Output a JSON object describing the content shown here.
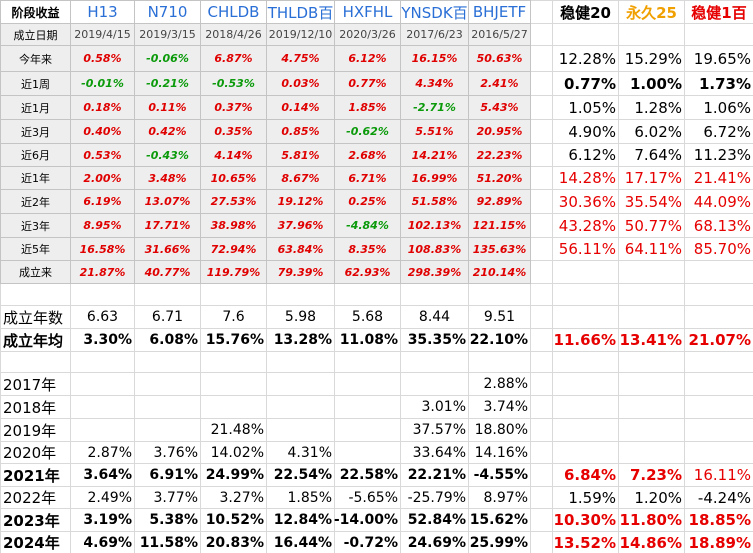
{
  "header": {
    "label": "阶段收益",
    "funds": [
      "H13",
      "N710",
      "CHLDB",
      "THLDB百",
      "HXFHL",
      "YNSDK百",
      "BHJETF"
    ],
    "portfolios": [
      "稳健20",
      "永久25",
      "稳健1百"
    ]
  },
  "inception_dates": {
    "label": "成立日期",
    "values": [
      "2019/4/15",
      "2019/3/15",
      "2018/4/26",
      "2019/12/10",
      "2020/3/26",
      "2017/6/23",
      "2016/5/27"
    ]
  },
  "period_returns": [
    {
      "label": "今年来",
      "funds": [
        "0.58%",
        "-0.06%",
        "6.87%",
        "4.75%",
        "6.12%",
        "16.15%",
        "50.63%"
      ],
      "portfolios": [
        "12.28%",
        "15.29%",
        "19.65%"
      ]
    },
    {
      "label": "近1周",
      "funds": [
        "-0.01%",
        "-0.21%",
        "-0.53%",
        "0.03%",
        "0.77%",
        "4.34%",
        "2.41%"
      ],
      "portfolios": [
        "0.77%",
        "1.00%",
        "1.73%"
      ]
    },
    {
      "label": "近1月",
      "funds": [
        "0.18%",
        "0.11%",
        "0.37%",
        "0.14%",
        "1.85%",
        "-2.71%",
        "5.43%"
      ],
      "portfolios": [
        "1.05%",
        "1.28%",
        "1.06%"
      ]
    },
    {
      "label": "近3月",
      "funds": [
        "0.40%",
        "0.42%",
        "0.35%",
        "0.85%",
        "-0.62%",
        "5.51%",
        "20.95%"
      ],
      "portfolios": [
        "4.90%",
        "6.02%",
        "6.72%"
      ]
    },
    {
      "label": "近6月",
      "funds": [
        "0.53%",
        "-0.43%",
        "4.14%",
        "5.81%",
        "2.68%",
        "14.21%",
        "22.23%"
      ],
      "portfolios": [
        "6.12%",
        "7.64%",
        "11.23%"
      ]
    },
    {
      "label": "近1年",
      "funds": [
        "2.00%",
        "3.48%",
        "10.65%",
        "8.67%",
        "6.71%",
        "16.99%",
        "51.20%"
      ],
      "portfolios": [
        "14.28%",
        "17.17%",
        "21.41%"
      ]
    },
    {
      "label": "近2年",
      "funds": [
        "6.19%",
        "13.07%",
        "27.53%",
        "19.12%",
        "0.25%",
        "51.58%",
        "92.89%"
      ],
      "portfolios": [
        "30.36%",
        "35.54%",
        "44.09%"
      ]
    },
    {
      "label": "近3年",
      "funds": [
        "8.95%",
        "17.71%",
        "38.98%",
        "37.96%",
        "-4.84%",
        "102.13%",
        "121.15%"
      ],
      "portfolios": [
        "43.28%",
        "50.77%",
        "68.13%"
      ]
    },
    {
      "label": "近5年",
      "funds": [
        "16.58%",
        "31.66%",
        "72.94%",
        "63.84%",
        "8.35%",
        "108.83%",
        "135.63%"
      ],
      "portfolios": [
        "56.11%",
        "64.11%",
        "85.70%"
      ]
    },
    {
      "label": "成立来",
      "funds": [
        "21.87%",
        "40.77%",
        "119.79%",
        "79.39%",
        "62.93%",
        "298.39%",
        "210.14%"
      ]
    }
  ],
  "summary": [
    {
      "label": "成立年数",
      "funds": [
        "6.63",
        "6.71",
        "7.6",
        "5.98",
        "5.68",
        "8.44",
        "9.51"
      ]
    },
    {
      "label": "成立年均",
      "funds": [
        "3.30%",
        "6.08%",
        "15.76%",
        "13.28%",
        "11.08%",
        "35.35%",
        "22.10%"
      ],
      "portfolios": [
        "11.66%",
        "13.41%",
        "21.07%"
      ]
    }
  ],
  "annual_returns": [
    {
      "label": "2017年",
      "funds": [
        null,
        null,
        null,
        null,
        null,
        null,
        "2.88%"
      ]
    },
    {
      "label": "2018年",
      "funds": [
        null,
        null,
        null,
        null,
        null,
        "3.01%",
        "3.74%"
      ]
    },
    {
      "label": "2019年",
      "funds": [
        null,
        null,
        "21.48%",
        null,
        null,
        "37.57%",
        "18.80%"
      ]
    },
    {
      "label": "2020年",
      "funds": [
        "2.87%",
        "3.76%",
        "14.02%",
        "4.31%",
        null,
        "33.64%",
        "14.16%"
      ]
    },
    {
      "label": "2021年",
      "funds": [
        "3.64%",
        "6.91%",
        "24.99%",
        "22.54%",
        "22.58%",
        "22.21%",
        "-4.55%"
      ],
      "portfolios": [
        "6.84%",
        "7.23%",
        "16.11%"
      ]
    },
    {
      "label": "2022年",
      "funds": [
        "2.49%",
        "3.77%",
        "3.27%",
        "1.85%",
        "-5.65%",
        "-25.79%",
        "8.97%"
      ],
      "portfolios": [
        "1.59%",
        "1.20%",
        "-4.24%"
      ]
    },
    {
      "label": "2023年",
      "funds": [
        "3.19%",
        "5.38%",
        "10.52%",
        "12.84%",
        "-14.00%",
        "52.84%",
        "15.62%"
      ],
      "portfolios": [
        "10.30%",
        "11.80%",
        "18.85%"
      ]
    },
    {
      "label": "2024年",
      "funds": [
        "4.69%",
        "11.58%",
        "20.83%",
        "16.44%",
        "-0.72%",
        "24.69%",
        "25.99%"
      ],
      "portfolios": [
        "13.52%",
        "14.86%",
        "18.89%"
      ]
    }
  ]
}
